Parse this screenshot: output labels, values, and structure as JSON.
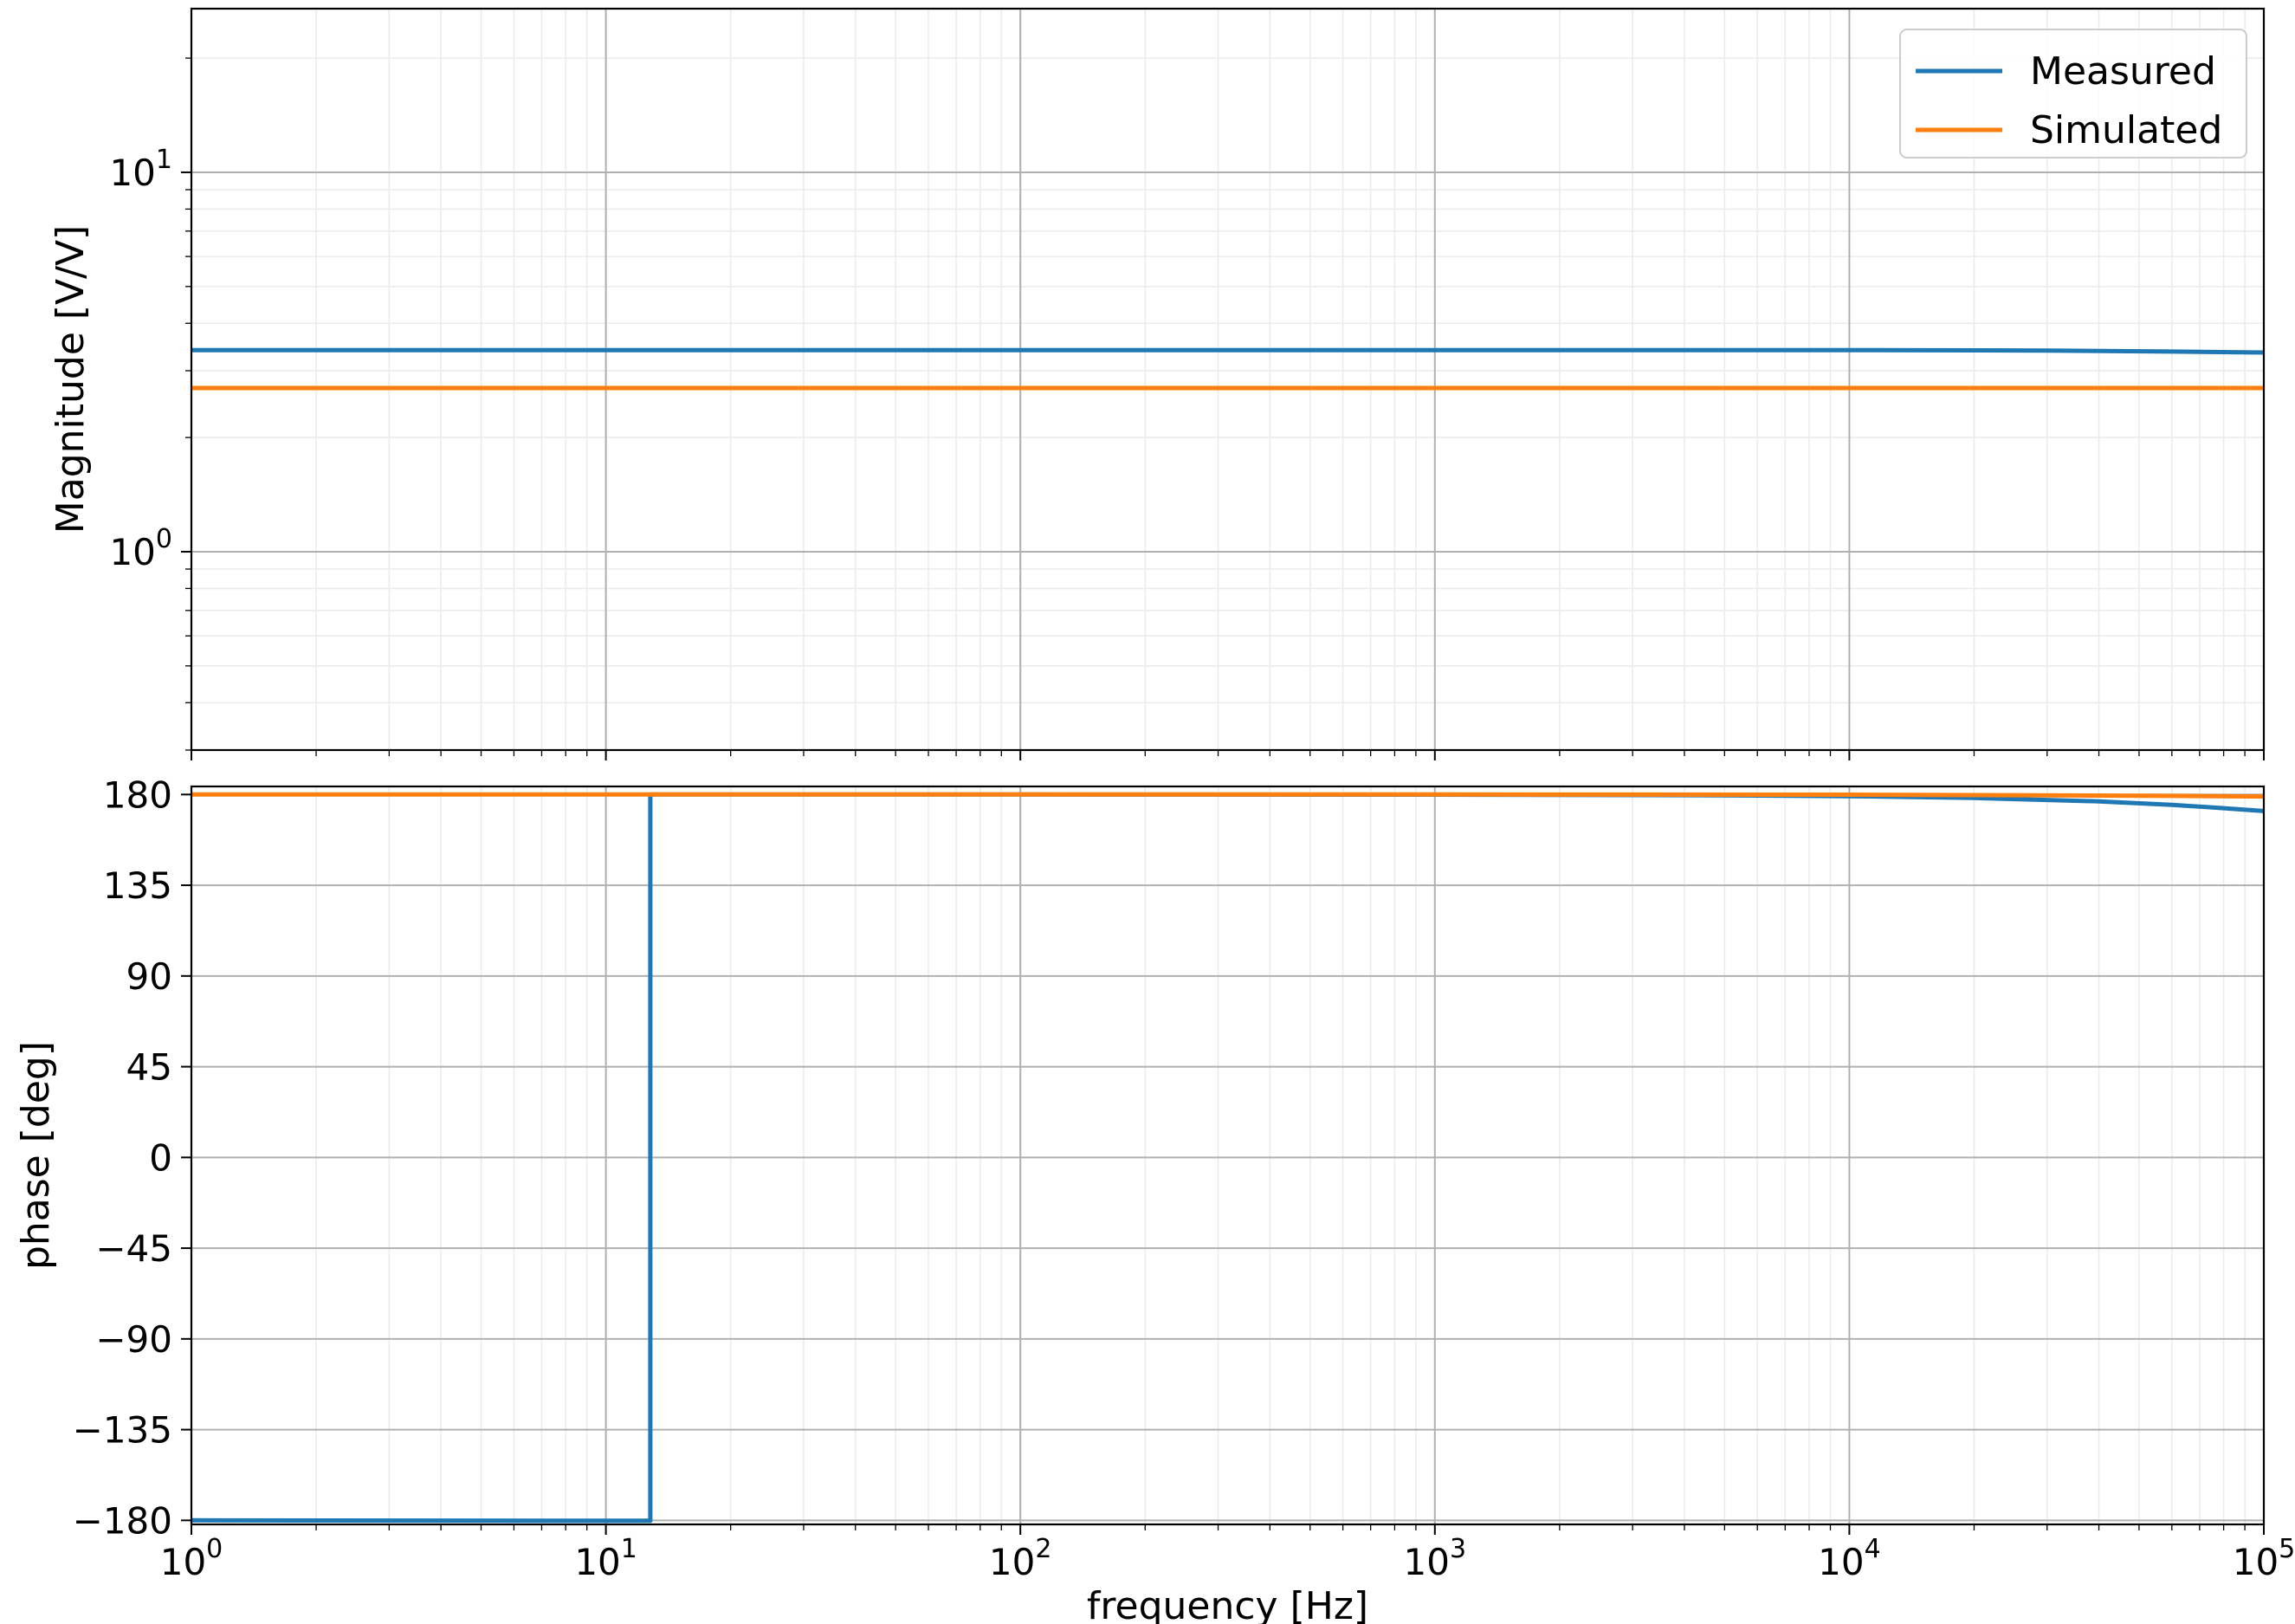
{
  "chart_data": [
    {
      "type": "line",
      "title": "",
      "xlabel": "",
      "ylabel": "Magnitude [V/V]",
      "xscale": "log",
      "yscale": "log",
      "xlim": [
        1,
        100000
      ],
      "ylim": [
        0.3,
        27
      ],
      "grid": true,
      "legend": "top-right",
      "yticks": [
        {
          "value": 1,
          "base": "10",
          "exp": "0"
        },
        {
          "value": 10,
          "base": "10",
          "exp": "1"
        }
      ],
      "series": [
        {
          "name": "Measured",
          "color": "#1f77b4",
          "x": [
            1,
            10,
            100,
            1000,
            10000,
            30000,
            60000,
            100000
          ],
          "y": [
            3.4,
            3.4,
            3.4,
            3.4,
            3.4,
            3.39,
            3.37,
            3.35
          ]
        },
        {
          "name": "Simulated",
          "color": "#ff7f0e",
          "x": [
            1,
            100000
          ],
          "y": [
            2.7,
            2.7
          ]
        }
      ]
    },
    {
      "type": "line",
      "title": "",
      "xlabel": "frequency [Hz]",
      "ylabel": "phase [deg]",
      "xscale": "log",
      "yscale": "linear",
      "xlim": [
        1,
        100000
      ],
      "ylim": [
        -182,
        184
      ],
      "grid": true,
      "xticks": [
        {
          "value": 1,
          "base": "10",
          "exp": "0"
        },
        {
          "value": 10,
          "base": "10",
          "exp": "1"
        },
        {
          "value": 100,
          "base": "10",
          "exp": "2"
        },
        {
          "value": 1000,
          "base": "10",
          "exp": "3"
        },
        {
          "value": 10000,
          "base": "10",
          "exp": "4"
        },
        {
          "value": 100000,
          "base": "10",
          "exp": "5"
        }
      ],
      "yticks": [
        {
          "value": 180,
          "label": "180"
        },
        {
          "value": 135,
          "label": "135"
        },
        {
          "value": 90,
          "label": "90"
        },
        {
          "value": 45,
          "label": "45"
        },
        {
          "value": 0,
          "label": "0"
        },
        {
          "value": -45,
          "label": "−45"
        },
        {
          "value": -90,
          "label": "−90"
        },
        {
          "value": -135,
          "label": "−135"
        },
        {
          "value": -180,
          "label": "−180"
        }
      ],
      "series": [
        {
          "name": "Measured",
          "color": "#1f77b4",
          "x": [
            1,
            12.3,
            12.3,
            12.8,
            12.8,
            100,
            1000,
            5000,
            10000,
            20000,
            40000,
            60000,
            80000,
            100000
          ],
          "y": [
            -180,
            -180.2,
            -180.2,
            -180.2,
            180,
            180,
            179.9,
            179.6,
            179.2,
            178.3,
            176.6,
            174.9,
            173.2,
            171.8
          ]
        },
        {
          "name": "Simulated",
          "color": "#ff7f0e",
          "x": [
            1,
            1000,
            10000,
            30000,
            60000,
            100000
          ],
          "y": [
            180,
            180,
            179.9,
            179.6,
            179.3,
            179
          ]
        }
      ]
    }
  ]
}
